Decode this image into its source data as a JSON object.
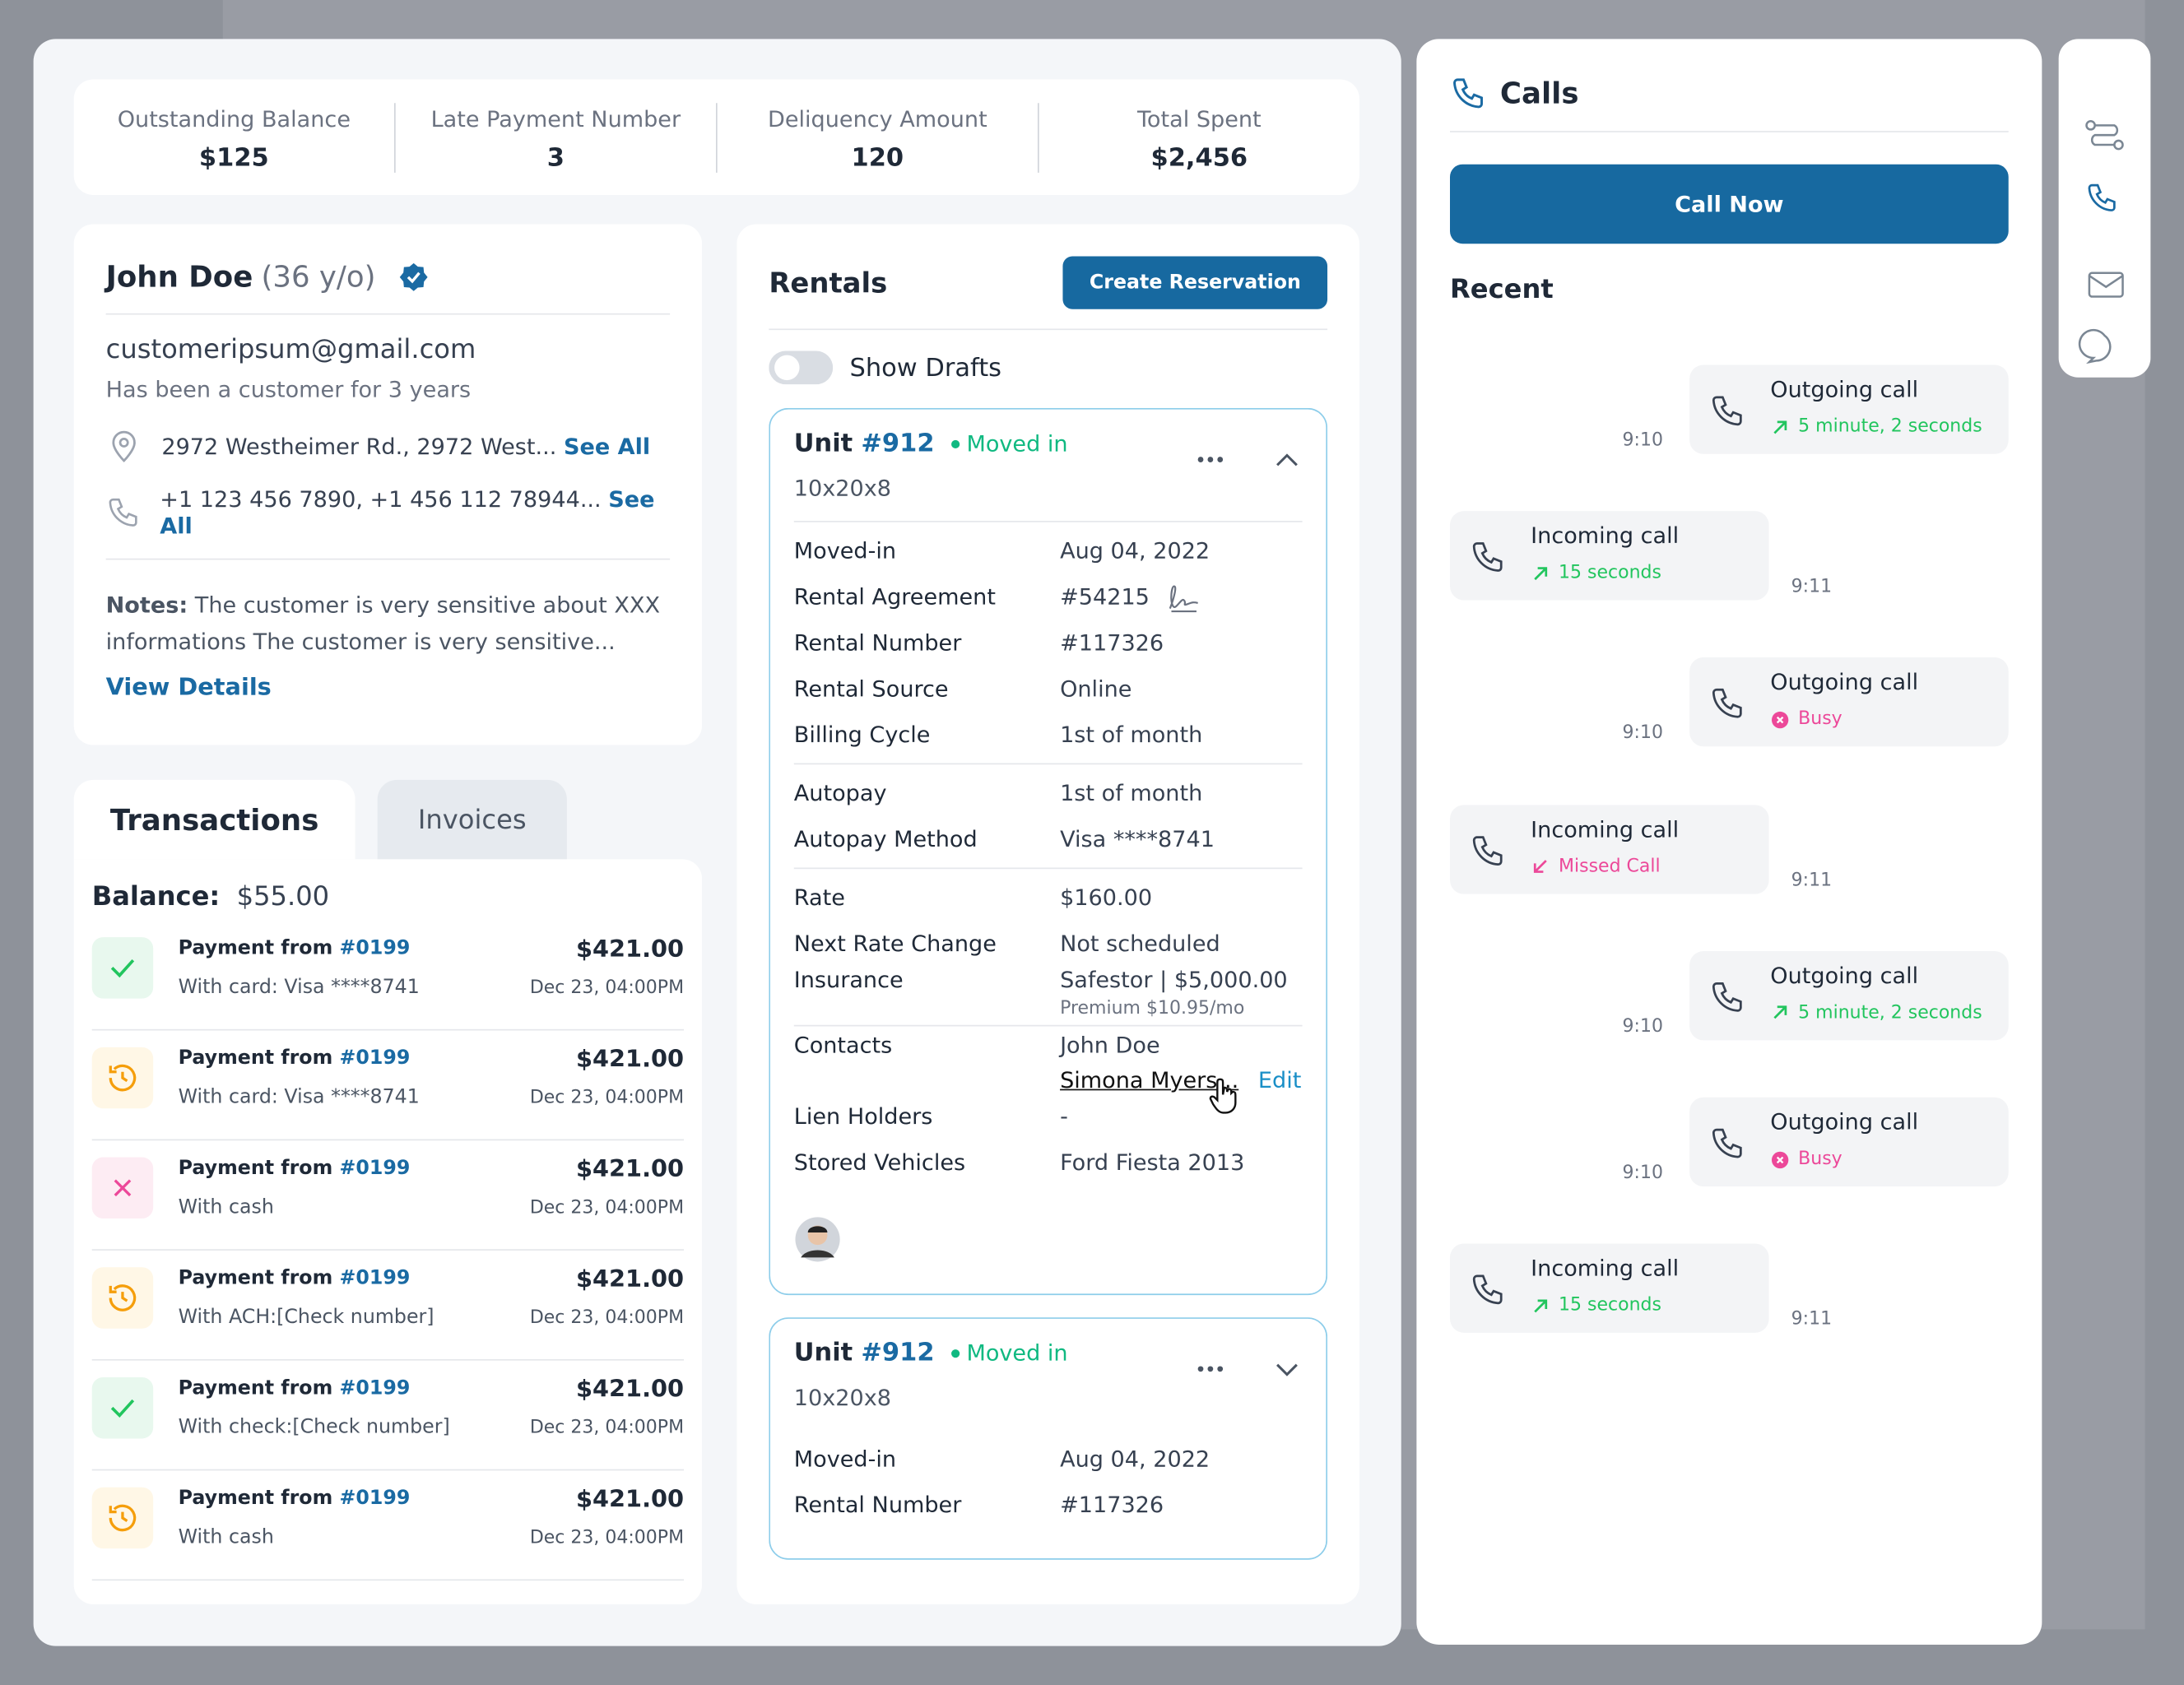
{
  "stats": [
    {
      "label": "Outstanding Balance",
      "value": "$125"
    },
    {
      "label": "Late Payment Number",
      "value": "3"
    },
    {
      "label": "Deliquency Amount",
      "value": "120"
    },
    {
      "label": "Total Spent",
      "value": "$2,456"
    }
  ],
  "customer": {
    "name": "John Doe",
    "age": "(36 y/o)",
    "email": "customeripsum@gmail.com",
    "tenure": "Has been a customer for 3 years",
    "address": "2972 Westheimer Rd., 2972 West...",
    "phone": "+1 123 456 7890, +1 456 112 78944...",
    "see_all": "See All",
    "notes_label": "Notes:",
    "notes": "The customer is very sensitive about XXX informations The customer is very sensitive...",
    "view_details": "View Details"
  },
  "tabs": [
    "Transactions",
    "Invoices"
  ],
  "balance": {
    "label": "Balance:",
    "value": "$55.00"
  },
  "transactions": [
    {
      "title": "Payment from",
      "ref": "#0199",
      "method": "With card: Visa ****8741",
      "amount": "$421.00",
      "date": "Dec 23, 04:00PM"
    },
    {
      "title": "Payment from",
      "ref": "#0199",
      "method": "With card: Visa ****8741",
      "amount": "$421.00",
      "date": "Dec 23, 04:00PM"
    },
    {
      "title": "Payment from",
      "ref": "#0199",
      "method": "With cash",
      "amount": "$421.00",
      "date": "Dec 23, 04:00PM"
    },
    {
      "title": "Payment from",
      "ref": "#0199",
      "method": "With ACH:[Check number]",
      "amount": "$421.00",
      "date": "Dec 23, 04:00PM"
    },
    {
      "title": "Payment from",
      "ref": "#0199",
      "method": "With check:[Check number]",
      "amount": "$421.00",
      "date": "Dec 23, 04:00PM"
    },
    {
      "title": "Payment from",
      "ref": "#0199",
      "method": "With cash",
      "amount": "$421.00",
      "date": "Dec 23, 04:00PM"
    }
  ],
  "rentals": {
    "title": "Rentals",
    "button": "Create Reservation",
    "toggle": "Show Drafts",
    "units": [
      {
        "unit": "Unit",
        "number": "#912",
        "status": "Moved in",
        "size": "10x20x8",
        "groups": [
          [
            {
              "label": "Moved-in",
              "value": "Aug 04, 2022"
            },
            {
              "label": "Rental Agreement",
              "value": "#54215"
            },
            {
              "label": "Rental Number",
              "value": "#117326"
            },
            {
              "label": "Rental Source",
              "value": "Online"
            },
            {
              "label": "Billing Cycle",
              "value": "1st of month"
            }
          ],
          [
            {
              "label": "Autopay",
              "value": "1st of month"
            },
            {
              "label": "Autopay Method",
              "value": "Visa ****8741"
            }
          ],
          [
            {
              "label": "Rate",
              "value": "$160.00"
            },
            {
              "label": "Next Rate Change",
              "value": "Not scheduled"
            },
            {
              "label": "Insurance",
              "value": "Safestor | $5,000.00",
              "sub": "Premium $10.95/mo"
            }
          ],
          [
            {
              "label": "Contacts",
              "value": "John Doe",
              "link": "Simona Myers...",
              "action": "Edit"
            },
            {
              "label": "Lien Holders",
              "value": "-"
            },
            {
              "label": "Stored Vehicles",
              "value": "Ford Fiesta 2013"
            }
          ]
        ]
      },
      {
        "unit": "Unit",
        "number": "#912",
        "status": "Moved in",
        "size": "10x20x8",
        "groups": [
          [
            {
              "label": "Moved-in",
              "value": "Aug 04, 2022"
            },
            {
              "label": "Rental Number",
              "value": "#117326"
            }
          ]
        ]
      }
    ]
  },
  "calls": {
    "title": "Calls",
    "button": "Call Now",
    "recent": "Recent",
    "items": [
      {
        "type": "Outgoing call",
        "detail": "5 minute, 2 seconds",
        "time": "9:10"
      },
      {
        "type": "Incoming call",
        "detail": "15 seconds",
        "time": "9:11"
      },
      {
        "type": "Outgoing call",
        "detail": "Busy",
        "time": "9:10"
      },
      {
        "type": "Incoming call",
        "detail": "Missed Call",
        "time": "9:11"
      },
      {
        "type": "Outgoing call",
        "detail": "5 minute, 2 seconds",
        "time": "9:10"
      },
      {
        "type": "Outgoing call",
        "detail": "Busy",
        "time": "9:10"
      },
      {
        "type": "Incoming call",
        "detail": "15 seconds",
        "time": "9:11"
      }
    ]
  }
}
